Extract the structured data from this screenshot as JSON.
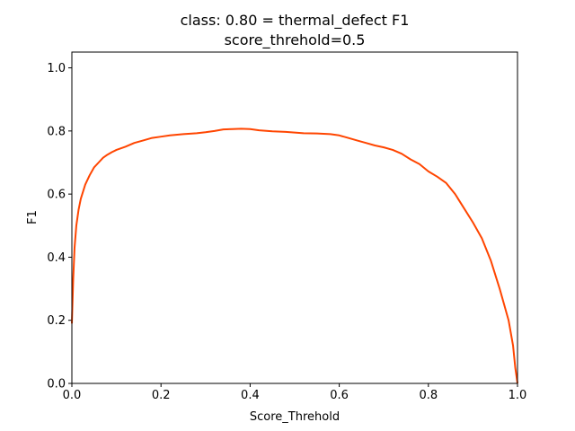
{
  "chart_data": {
    "type": "line",
    "title": "class: 0.80 = thermal_defect F1",
    "subtitle": "score_threhold=0.5",
    "xlabel": "Score_Threhold",
    "ylabel": "F1",
    "xlim": [
      0.0,
      1.0
    ],
    "ylim": [
      0.0,
      1.05
    ],
    "xticks": [
      "0.0",
      "0.2",
      "0.4",
      "0.6",
      "0.8",
      "1.0"
    ],
    "yticks": [
      "0.0",
      "0.2",
      "0.4",
      "0.6",
      "0.8",
      "1.0"
    ],
    "grid": false,
    "series": [
      {
        "color": "#ff4500",
        "x": [
          0.0,
          0.003,
          0.006,
          0.01,
          0.015,
          0.02,
          0.03,
          0.04,
          0.05,
          0.06,
          0.07,
          0.08,
          0.09,
          0.1,
          0.12,
          0.14,
          0.16,
          0.18,
          0.2,
          0.22,
          0.25,
          0.28,
          0.3,
          0.32,
          0.34,
          0.36,
          0.38,
          0.4,
          0.42,
          0.45,
          0.48,
          0.5,
          0.52,
          0.55,
          0.58,
          0.6,
          0.62,
          0.64,
          0.66,
          0.68,
          0.7,
          0.72,
          0.74,
          0.76,
          0.78,
          0.8,
          0.82,
          0.84,
          0.86,
          0.88,
          0.9,
          0.92,
          0.94,
          0.96,
          0.97,
          0.98,
          0.99,
          0.995,
          1.0
        ],
        "y": [
          0.19,
          0.33,
          0.43,
          0.5,
          0.55,
          0.585,
          0.63,
          0.66,
          0.685,
          0.7,
          0.715,
          0.725,
          0.733,
          0.74,
          0.75,
          0.762,
          0.77,
          0.778,
          0.782,
          0.786,
          0.79,
          0.793,
          0.796,
          0.8,
          0.805,
          0.806,
          0.807,
          0.806,
          0.802,
          0.799,
          0.797,
          0.795,
          0.793,
          0.792,
          0.79,
          0.786,
          0.778,
          0.77,
          0.762,
          0.754,
          0.748,
          0.74,
          0.728,
          0.71,
          0.695,
          0.672,
          0.655,
          0.635,
          0.6,
          0.555,
          0.51,
          0.46,
          0.39,
          0.3,
          0.25,
          0.2,
          0.12,
          0.05,
          0.0
        ]
      }
    ]
  }
}
